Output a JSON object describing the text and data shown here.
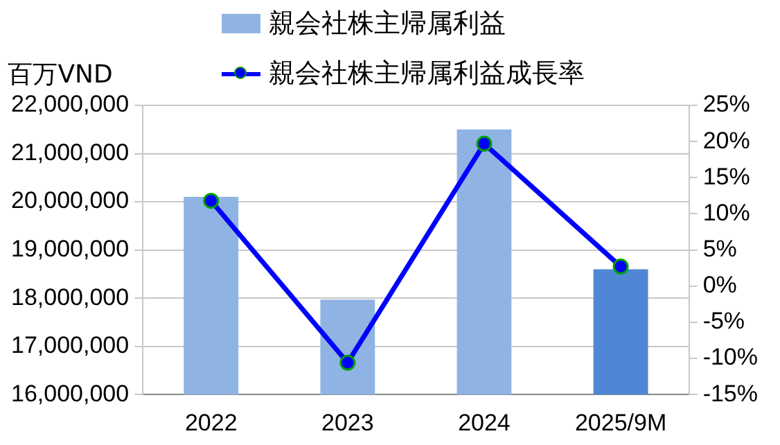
{
  "chart_data": {
    "type": "bar",
    "ylabel": "百万VND",
    "categories": [
      "2022",
      "2023",
      "2024",
      "2025/9M"
    ],
    "series": [
      {
        "name": "親会社株主帰属利益",
        "color": "#8fb4e3",
        "colors": [
          "#8fb4e3",
          "#8fb4e3",
          "#8fb4e3",
          "#4f87d4"
        ],
        "values": [
          20100000,
          17970000,
          21500000,
          18600000
        ]
      },
      {
        "name": "親会社株主帰属利益成長率",
        "type": "line",
        "axis": "y2",
        "color": "#0000ff",
        "marker": "circle",
        "values": [
          11.8,
          -10.6,
          19.7,
          2.7
        ]
      }
    ],
    "ylim": [
      16000000,
      22000000
    ],
    "yticks": [
      {
        "value": 16000000,
        "label": "16,000,000"
      },
      {
        "value": 17000000,
        "label": "17,000,000"
      },
      {
        "value": 18000000,
        "label": "18,000,000"
      },
      {
        "value": 19000000,
        "label": "19,000,000"
      },
      {
        "value": 20000000,
        "label": "20,000,000"
      },
      {
        "value": 21000000,
        "label": "21,000,000"
      },
      {
        "value": 22000000,
        "label": "22,000,000"
      }
    ],
    "y2lim": [
      -15,
      25
    ],
    "y2ticks": [
      {
        "value": -15,
        "label": "-15%"
      },
      {
        "value": -10,
        "label": "-10%"
      },
      {
        "value": -5,
        "label": "-5%"
      },
      {
        "value": 0,
        "label": "0%"
      },
      {
        "value": 5,
        "label": "5%"
      },
      {
        "value": 10,
        "label": "10%"
      },
      {
        "value": 15,
        "label": "15%"
      },
      {
        "value": 20,
        "label": "20%"
      },
      {
        "value": 25,
        "label": "25%"
      }
    ],
    "grid": "y",
    "legend": "top"
  }
}
